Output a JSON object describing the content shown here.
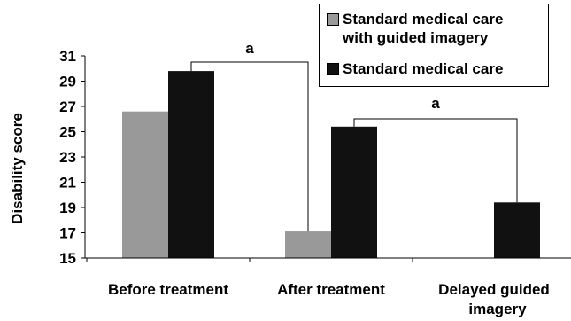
{
  "chart_data": {
    "type": "bar",
    "categories": [
      "Before treatment",
      "After treatment",
      "Delayed guided imagery"
    ],
    "series": [
      {
        "name": "Standard medical care with guided imagery",
        "color": "#999999",
        "values": [
          26.6,
          17.1,
          null
        ]
      },
      {
        "name": "Standard medical care",
        "color": "#111111",
        "values": [
          29.8,
          25.4,
          19.4
        ]
      }
    ],
    "ylabel": "Disability  score",
    "ylim": [
      15,
      31
    ],
    "yticks": [
      "15",
      "17",
      "19",
      "21",
      "23",
      "25",
      "27",
      "29",
      "31"
    ],
    "grid": false,
    "legend": {
      "position": "top-right",
      "entries": [
        {
          "line1": "Standard medical care",
          "line2": "with guided imagery"
        },
        {
          "line1": "Standard medical care",
          "line2": ""
        }
      ]
    },
    "annotations": [
      {
        "label": "a",
        "from": "Standard medical care with guided imagery: After treatment",
        "to": "Standard medical care: Before treatment"
      },
      {
        "label": "a",
        "from": "Standard medical care: After treatment",
        "to": "Standard medical care: Delayed guided imagery"
      }
    ]
  }
}
